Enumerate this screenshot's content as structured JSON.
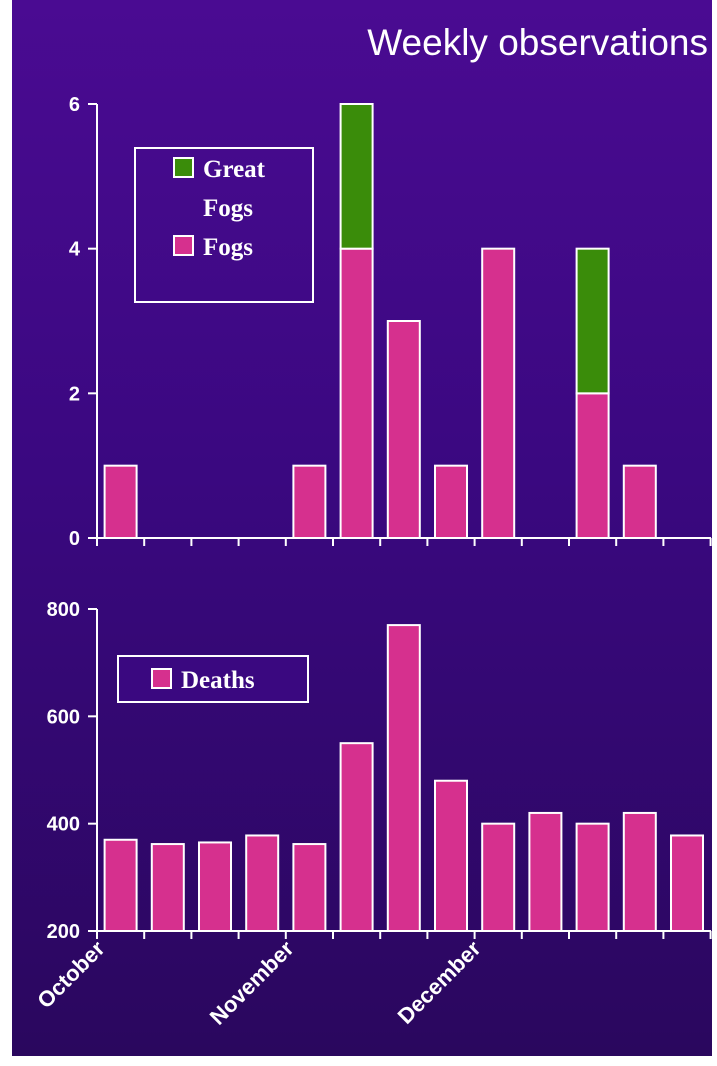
{
  "title": "Weekly observations",
  "colors": {
    "fogs": "#d6308e",
    "great_fogs": "#3a8c0a",
    "deaths": "#d6308e",
    "outline": "#ffffff"
  },
  "x_labels": [
    "October",
    "November",
    "December"
  ],
  "chart_data": [
    {
      "type": "bar",
      "stacked": true,
      "ylim": [
        0,
        6
      ],
      "yticks": [
        "0",
        "2",
        "4",
        "6"
      ],
      "legend": {
        "placement": "top-left",
        "entries": [
          "Great Fogs",
          "Fogs"
        ]
      },
      "series": [
        {
          "name": "Fogs",
          "values": [
            1,
            0,
            0,
            0,
            1,
            4,
            3,
            1,
            4,
            0,
            2,
            1,
            0
          ]
        },
        {
          "name": "Great Fogs",
          "values": [
            0,
            0,
            0,
            0,
            0,
            2,
            0,
            0,
            0,
            0,
            2,
            0,
            0
          ]
        }
      ]
    },
    {
      "type": "bar",
      "ylim": [
        200,
        800
      ],
      "yticks": [
        "200",
        "400",
        "600",
        "800"
      ],
      "legend": {
        "placement": "top-left",
        "entries": [
          "Deaths"
        ]
      },
      "series": [
        {
          "name": "Deaths",
          "values": [
            370,
            362,
            365,
            378,
            362,
            550,
            770,
            480,
            400,
            420,
            400,
            420,
            378
          ]
        }
      ]
    }
  ]
}
